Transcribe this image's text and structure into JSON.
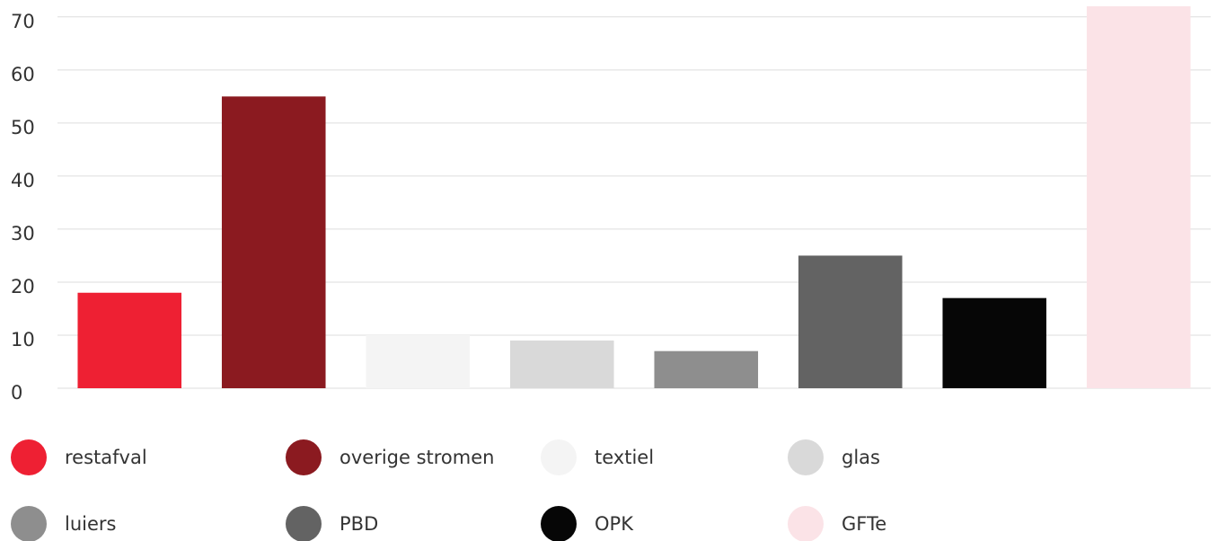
{
  "chart_data": {
    "type": "bar",
    "categories": [
      "restafval",
      "overige stromen",
      "textiel",
      "glas",
      "luiers",
      "PBD",
      "OPK",
      "GFTe"
    ],
    "values": [
      18,
      55,
      10,
      9,
      7,
      25,
      17,
      72
    ],
    "colors": [
      "#ee2033",
      "#8b1a20",
      "#f4f4f4",
      "#d9d9d9",
      "#8e8e8e",
      "#636363",
      "#060606",
      "#fbe3e7"
    ],
    "ylim": [
      0,
      72
    ],
    "yticks": [
      0,
      10,
      20,
      30,
      40,
      50,
      60,
      70
    ],
    "grid": true,
    "legend": "bottom"
  }
}
